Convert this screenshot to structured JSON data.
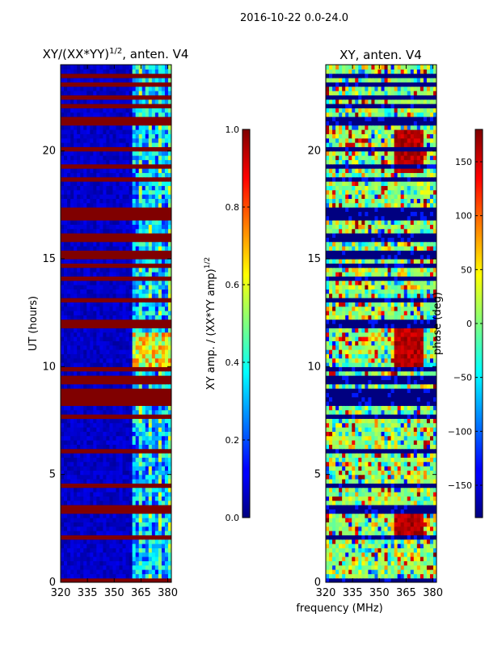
{
  "suptitle": "2016-10-22 0.0-24.0",
  "xlabel_shared": "frequency (MHz)",
  "colors": {
    "jet_dark_blue": "#00007f",
    "jet_red": "#7f0000",
    "cyan": "#00ffff",
    "yellow": "#ffff00"
  },
  "chart_data": [
    {
      "type": "heatmap",
      "title_main": "XY/(XX*YY)",
      "title_sup": "1/2",
      "title_tail": ", anten. V4",
      "xlabel": "",
      "ylabel": "UT (hours)",
      "xlim": [
        320,
        382
      ],
      "ylim": [
        0,
        24
      ],
      "xticks": [
        320,
        335,
        350,
        365,
        380
      ],
      "yticks": [
        0,
        5,
        10,
        15,
        20
      ],
      "colormap": "jet",
      "colorbar": {
        "label_main": "XY amp. / (XX*YY amp)",
        "label_sup": "1/2",
        "vmin": 0.0,
        "vmax": 1.0,
        "ticks": [
          "0.0",
          "0.2",
          "0.4",
          "0.6",
          "0.8",
          "1.0"
        ],
        "tick_values": [
          0.0,
          0.2,
          0.4,
          0.6,
          0.8,
          1.0
        ]
      },
      "high_band_mhz": [
        361,
        382
      ],
      "flagged_hours": [
        0.1,
        1.2,
        2.0,
        3.4,
        3.5,
        3.6,
        4.5,
        6.0,
        7.8,
        8.4,
        8.5,
        8.6,
        8.8,
        9.3,
        9.4,
        9.9,
        11.9,
        12.0,
        13.0,
        14.2,
        14.7,
        15.2,
        15.9,
        16.0,
        16.9,
        17.1,
        17.2,
        17.3,
        18.6,
        19.3,
        20.1,
        20.2,
        21.3,
        21.5,
        22.1,
        22.5,
        23.2,
        23.5
      ]
    },
    {
      "type": "heatmap",
      "title_main": "XY, anten. V4",
      "xlabel": "frequency (MHz)",
      "ylabel": "",
      "xlim": [
        320,
        382
      ],
      "ylim": [
        0,
        24
      ],
      "xticks": [
        320,
        335,
        350,
        365,
        380
      ],
      "yticks": [
        0,
        5,
        10,
        15,
        20
      ],
      "colormap": "jet",
      "colorbar": {
        "label_main": "phase (deg)",
        "vmin": -180,
        "vmax": 180,
        "ticks": [
          "150",
          "100",
          "50",
          "0",
          "−50",
          "−100",
          "−150"
        ],
        "tick_values": [
          150,
          100,
          50,
          0,
          -50,
          -100,
          -150
        ]
      },
      "flagged_hours": [
        0.1,
        1.2,
        2.0,
        3.4,
        3.5,
        3.6,
        4.5,
        6.0,
        7.8,
        8.4,
        8.5,
        8.6,
        8.8,
        9.3,
        9.4,
        9.9,
        11.9,
        12.0,
        13.0,
        14.2,
        14.7,
        15.2,
        15.9,
        16.0,
        16.9,
        17.1,
        17.2,
        17.3,
        18.6,
        19.3,
        20.1,
        20.2,
        21.3,
        21.5,
        22.1,
        22.5,
        23.2,
        23.5
      ]
    }
  ]
}
